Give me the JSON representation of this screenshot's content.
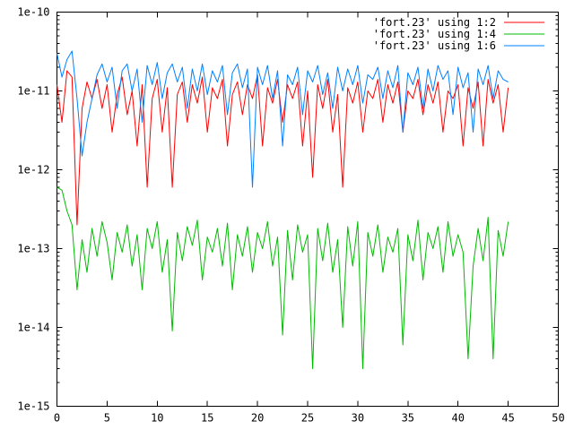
{
  "chart_data": {
    "type": "line",
    "title": "",
    "xlabel": "",
    "ylabel": "",
    "xlim": [
      0,
      50
    ],
    "ylim": [
      1e-15,
      1e-10
    ],
    "y_scale": "log",
    "grid": false,
    "legend_position": "top-right",
    "x_ticks": [
      0,
      5,
      10,
      15,
      20,
      25,
      30,
      35,
      40,
      45,
      50
    ],
    "x_tick_labels": [
      "0",
      "5",
      "10",
      "15",
      "20",
      "25",
      "30",
      "35",
      "40",
      "45",
      "50"
    ],
    "y_ticks": [
      1e-15,
      1e-14,
      1e-13,
      1e-12,
      1e-11,
      1e-10
    ],
    "y_tick_labels": [
      "1e-15",
      "1e-14",
      "1e-13",
      "1e-12",
      "1e-11",
      "1e-10"
    ],
    "series": [
      {
        "name": "'fort.23' using 1:2",
        "color": "#ff0000",
        "x": [
          0,
          0.5,
          1,
          1.5,
          2,
          2.5,
          3,
          3.5,
          4,
          4.5,
          5,
          5.5,
          6,
          6.5,
          7,
          7.5,
          8,
          8.5,
          9,
          9.5,
          10,
          10.5,
          11,
          11.5,
          12,
          12.5,
          13,
          13.5,
          14,
          14.5,
          15,
          15.5,
          16,
          16.5,
          17,
          17.5,
          18,
          18.5,
          19,
          19.5,
          20,
          20.5,
          21,
          21.5,
          22,
          22.5,
          23,
          23.5,
          24,
          24.5,
          25,
          25.5,
          26,
          26.5,
          27,
          27.5,
          28,
          28.5,
          29,
          29.5,
          30,
          30.5,
          31,
          31.5,
          32,
          32.5,
          33,
          33.5,
          34,
          34.5,
          35,
          35.5,
          36,
          36.5,
          37,
          37.5,
          38,
          38.5,
          39,
          39.5,
          40,
          40.5,
          41,
          41.5,
          42,
          42.5,
          43,
          43.5,
          44,
          44.5,
          45
        ],
        "y": [
          1.2e-11,
          4e-12,
          1.8e-11,
          1.5e-11,
          2e-13,
          6e-12,
          1.3e-11,
          8e-12,
          1.4e-11,
          6e-12,
          1.2e-11,
          3e-12,
          9e-12,
          1.5e-11,
          5e-12,
          1e-11,
          2e-12,
          1.2e-11,
          6e-13,
          8e-12,
          1.4e-11,
          3e-12,
          1.1e-11,
          6e-13,
          9e-12,
          1.3e-11,
          4e-12,
          1.2e-11,
          7e-12,
          1.5e-11,
          3e-12,
          1.1e-11,
          8e-12,
          1.4e-11,
          2e-12,
          9e-12,
          1.3e-11,
          5e-12,
          1.2e-11,
          8e-12,
          1.6e-11,
          2e-12,
          1.1e-11,
          7e-12,
          1.4e-11,
          4e-12,
          1.2e-11,
          8e-12,
          1.3e-11,
          2e-12,
          1e-11,
          8e-13,
          1.2e-11,
          6e-12,
          1.4e-11,
          3e-12,
          9e-12,
          6e-13,
          1.1e-11,
          7e-12,
          1.3e-11,
          3e-12,
          1e-11,
          8e-12,
          1.4e-11,
          4e-12,
          1.2e-11,
          7e-12,
          1.3e-11,
          3e-12,
          1e-11,
          8e-12,
          1.4e-11,
          5e-12,
          1.2e-11,
          7e-12,
          1.3e-11,
          3e-12,
          1e-11,
          8e-12,
          1.2e-11,
          2e-12,
          1.1e-11,
          6e-12,
          1.3e-11,
          2e-12,
          1.4e-11,
          7e-12,
          1.2e-11,
          3e-12,
          1.1e-11
        ]
      },
      {
        "name": "'fort.23' using 1:4",
        "color": "#00bb00",
        "x": [
          0,
          0.5,
          1,
          1.5,
          2,
          2.5,
          3,
          3.5,
          4,
          4.5,
          5,
          5.5,
          6,
          6.5,
          7,
          7.5,
          8,
          8.5,
          9,
          9.5,
          10,
          10.5,
          11,
          11.5,
          12,
          12.5,
          13,
          13.5,
          14,
          14.5,
          15,
          15.5,
          16,
          16.5,
          17,
          17.5,
          18,
          18.5,
          19,
          19.5,
          20,
          20.5,
          21,
          21.5,
          22,
          22.5,
          23,
          23.5,
          24,
          24.5,
          25,
          25.5,
          26,
          26.5,
          27,
          27.5,
          28,
          28.5,
          29,
          29.5,
          30,
          30.5,
          31,
          31.5,
          32,
          32.5,
          33,
          33.5,
          34,
          34.5,
          35,
          35.5,
          36,
          36.5,
          37,
          37.5,
          38,
          38.5,
          39,
          39.5,
          40,
          40.5,
          41,
          41.5,
          42,
          42.5,
          43,
          43.5,
          44,
          44.5,
          45
        ],
        "y": [
          6e-13,
          5.5e-13,
          3e-13,
          2e-13,
          3e-14,
          1.3e-13,
          5e-14,
          1.8e-13,
          8e-14,
          2.2e-13,
          1.2e-13,
          4e-14,
          1.6e-13,
          9e-14,
          2e-13,
          6e-14,
          1.5e-13,
          3e-14,
          1.8e-13,
          1e-13,
          2.2e-13,
          5e-14,
          1.3e-13,
          9e-15,
          1.6e-13,
          7e-14,
          1.9e-13,
          1.1e-13,
          2.3e-13,
          4e-14,
          1.4e-13,
          9e-14,
          1.8e-13,
          6e-14,
          2.1e-13,
          3e-14,
          1.5e-13,
          8e-14,
          1.9e-13,
          5e-14,
          1.6e-13,
          1e-13,
          2.2e-13,
          6e-14,
          1.4e-13,
          8e-15,
          1.7e-13,
          4e-14,
          2e-13,
          9e-14,
          1.5e-13,
          3e-15,
          1.8e-13,
          7e-14,
          2.1e-13,
          5e-14,
          1.3e-13,
          1e-14,
          1.9e-13,
          6e-14,
          2.2e-13,
          3e-15,
          1.6e-13,
          8e-14,
          2e-13,
          5e-14,
          1.4e-13,
          9e-14,
          1.8e-13,
          6e-15,
          1.5e-13,
          7e-14,
          2.3e-13,
          4e-14,
          1.6e-13,
          1e-13,
          1.9e-13,
          5e-14,
          2.2e-13,
          8e-14,
          1.5e-13,
          9e-14,
          4e-15,
          6e-14,
          1.8e-13,
          7e-14,
          2.5e-13,
          4e-15,
          1.7e-13,
          8e-14,
          2.2e-13
        ]
      },
      {
        "name": "'fort.23' using 1:6",
        "color": "#0080ff",
        "x": [
          0,
          0.5,
          1,
          1.5,
          2,
          2.5,
          3,
          3.5,
          4,
          4.5,
          5,
          5.5,
          6,
          6.5,
          7,
          7.5,
          8,
          8.5,
          9,
          9.5,
          10,
          10.5,
          11,
          11.5,
          12,
          12.5,
          13,
          13.5,
          14,
          14.5,
          15,
          15.5,
          16,
          16.5,
          17,
          17.5,
          18,
          18.5,
          19,
          19.5,
          20,
          20.5,
          21,
          21.5,
          22,
          22.5,
          23,
          23.5,
          24,
          24.5,
          25,
          25.5,
          26,
          26.5,
          27,
          27.5,
          28,
          28.5,
          29,
          29.5,
          30,
          30.5,
          31,
          31.5,
          32,
          32.5,
          33,
          33.5,
          34,
          34.5,
          35,
          35.5,
          36,
          36.5,
          37,
          37.5,
          38,
          38.5,
          39,
          39.5,
          40,
          40.5,
          41,
          41.5,
          42,
          42.5,
          43,
          43.5,
          44,
          44.5,
          45
        ],
        "y": [
          3e-11,
          1.5e-11,
          2.5e-11,
          3.2e-11,
          8e-12,
          1.5e-12,
          4e-12,
          8e-12,
          1.6e-11,
          2.2e-11,
          1.3e-11,
          2e-11,
          6e-12,
          1.8e-11,
          2.2e-11,
          1e-11,
          1.9e-11,
          4e-12,
          2.1e-11,
          1.2e-11,
          2.3e-11,
          8e-12,
          1.7e-11,
          2.2e-11,
          1.3e-11,
          2e-11,
          6e-12,
          1.9e-11,
          1e-11,
          2.2e-11,
          9e-12,
          1.8e-11,
          1.3e-11,
          2.1e-11,
          5e-12,
          1.7e-11,
          2.2e-11,
          1.1e-11,
          1.9e-11,
          6e-13,
          2e-11,
          1.2e-11,
          2.1e-11,
          8e-12,
          1.8e-11,
          2e-12,
          1.6e-11,
          1.2e-11,
          2e-11,
          5e-12,
          1.8e-11,
          1.3e-11,
          2.1e-11,
          9e-12,
          1.7e-11,
          6e-12,
          2e-11,
          1e-11,
          1.9e-11,
          1.2e-11,
          2.1e-11,
          7e-12,
          1.6e-11,
          1.4e-11,
          2e-11,
          8e-12,
          1.8e-11,
          1.1e-11,
          2.1e-11,
          3e-12,
          1.7e-11,
          1.2e-11,
          2e-11,
          6e-12,
          1.9e-11,
          1e-11,
          2.1e-11,
          1.4e-11,
          1.8e-11,
          5e-12,
          2e-11,
          1.1e-11,
          1.7e-11,
          3e-12,
          1.9e-11,
          1.2e-11,
          2.1e-11,
          8e-12,
          1.8e-11,
          1.4e-11,
          1.3e-11
        ]
      }
    ]
  }
}
